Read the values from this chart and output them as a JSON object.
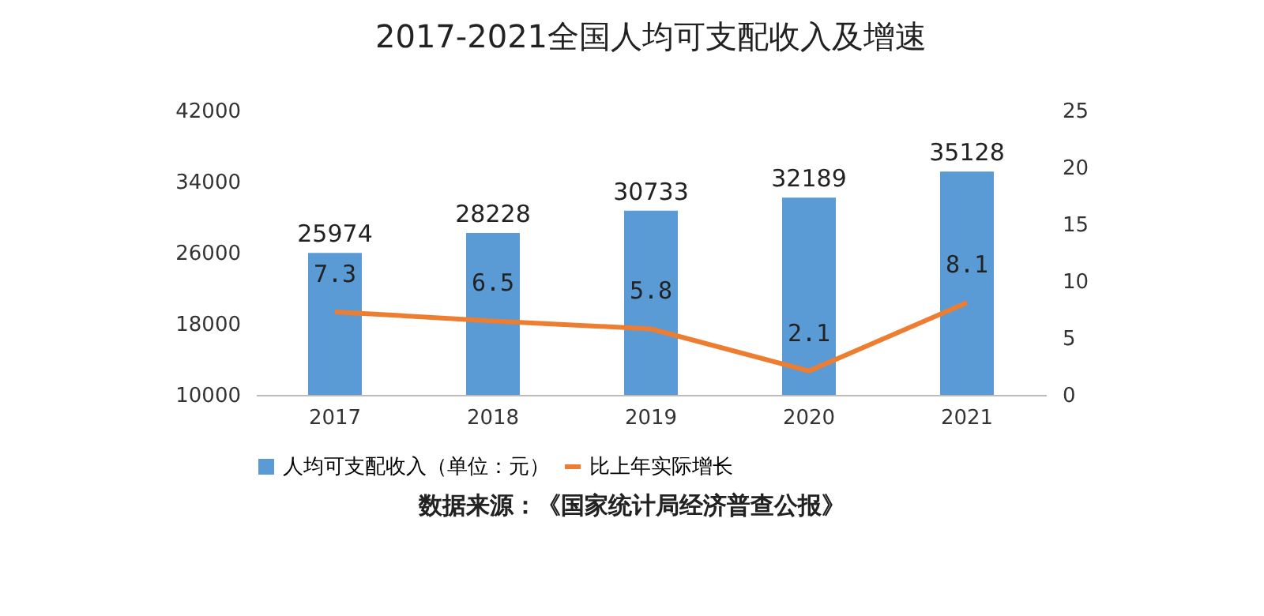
{
  "chart_data": {
    "type": "bar",
    "title": "2017-2021全国人均可支配收入及增速",
    "categories": [
      "2017",
      "2018",
      "2019",
      "2020",
      "2021"
    ],
    "series": [
      {
        "name": "人均可支配收入（单位：元）",
        "color": "#5b9bd5",
        "values": [
          25974,
          28228,
          30733,
          32189,
          35128
        ]
      },
      {
        "name": "比上年实际增长",
        "type": "line",
        "axis": "y2",
        "color": "#ed7d31",
        "values": [
          7.3,
          6.5,
          5.8,
          2.1,
          8.1
        ]
      }
    ],
    "ylim": [
      10000,
      42000
    ],
    "yticks": [
      10000,
      18000,
      26000,
      34000,
      42000
    ],
    "y2lim": [
      0,
      25
    ],
    "y2ticks": [
      0,
      5,
      10,
      15,
      20,
      25
    ],
    "data_labels": true,
    "grid": false,
    "legend": "bottom",
    "marker": "none",
    "annotations": [
      "数据来源：《国家统计局经济普查公报》"
    ]
  }
}
